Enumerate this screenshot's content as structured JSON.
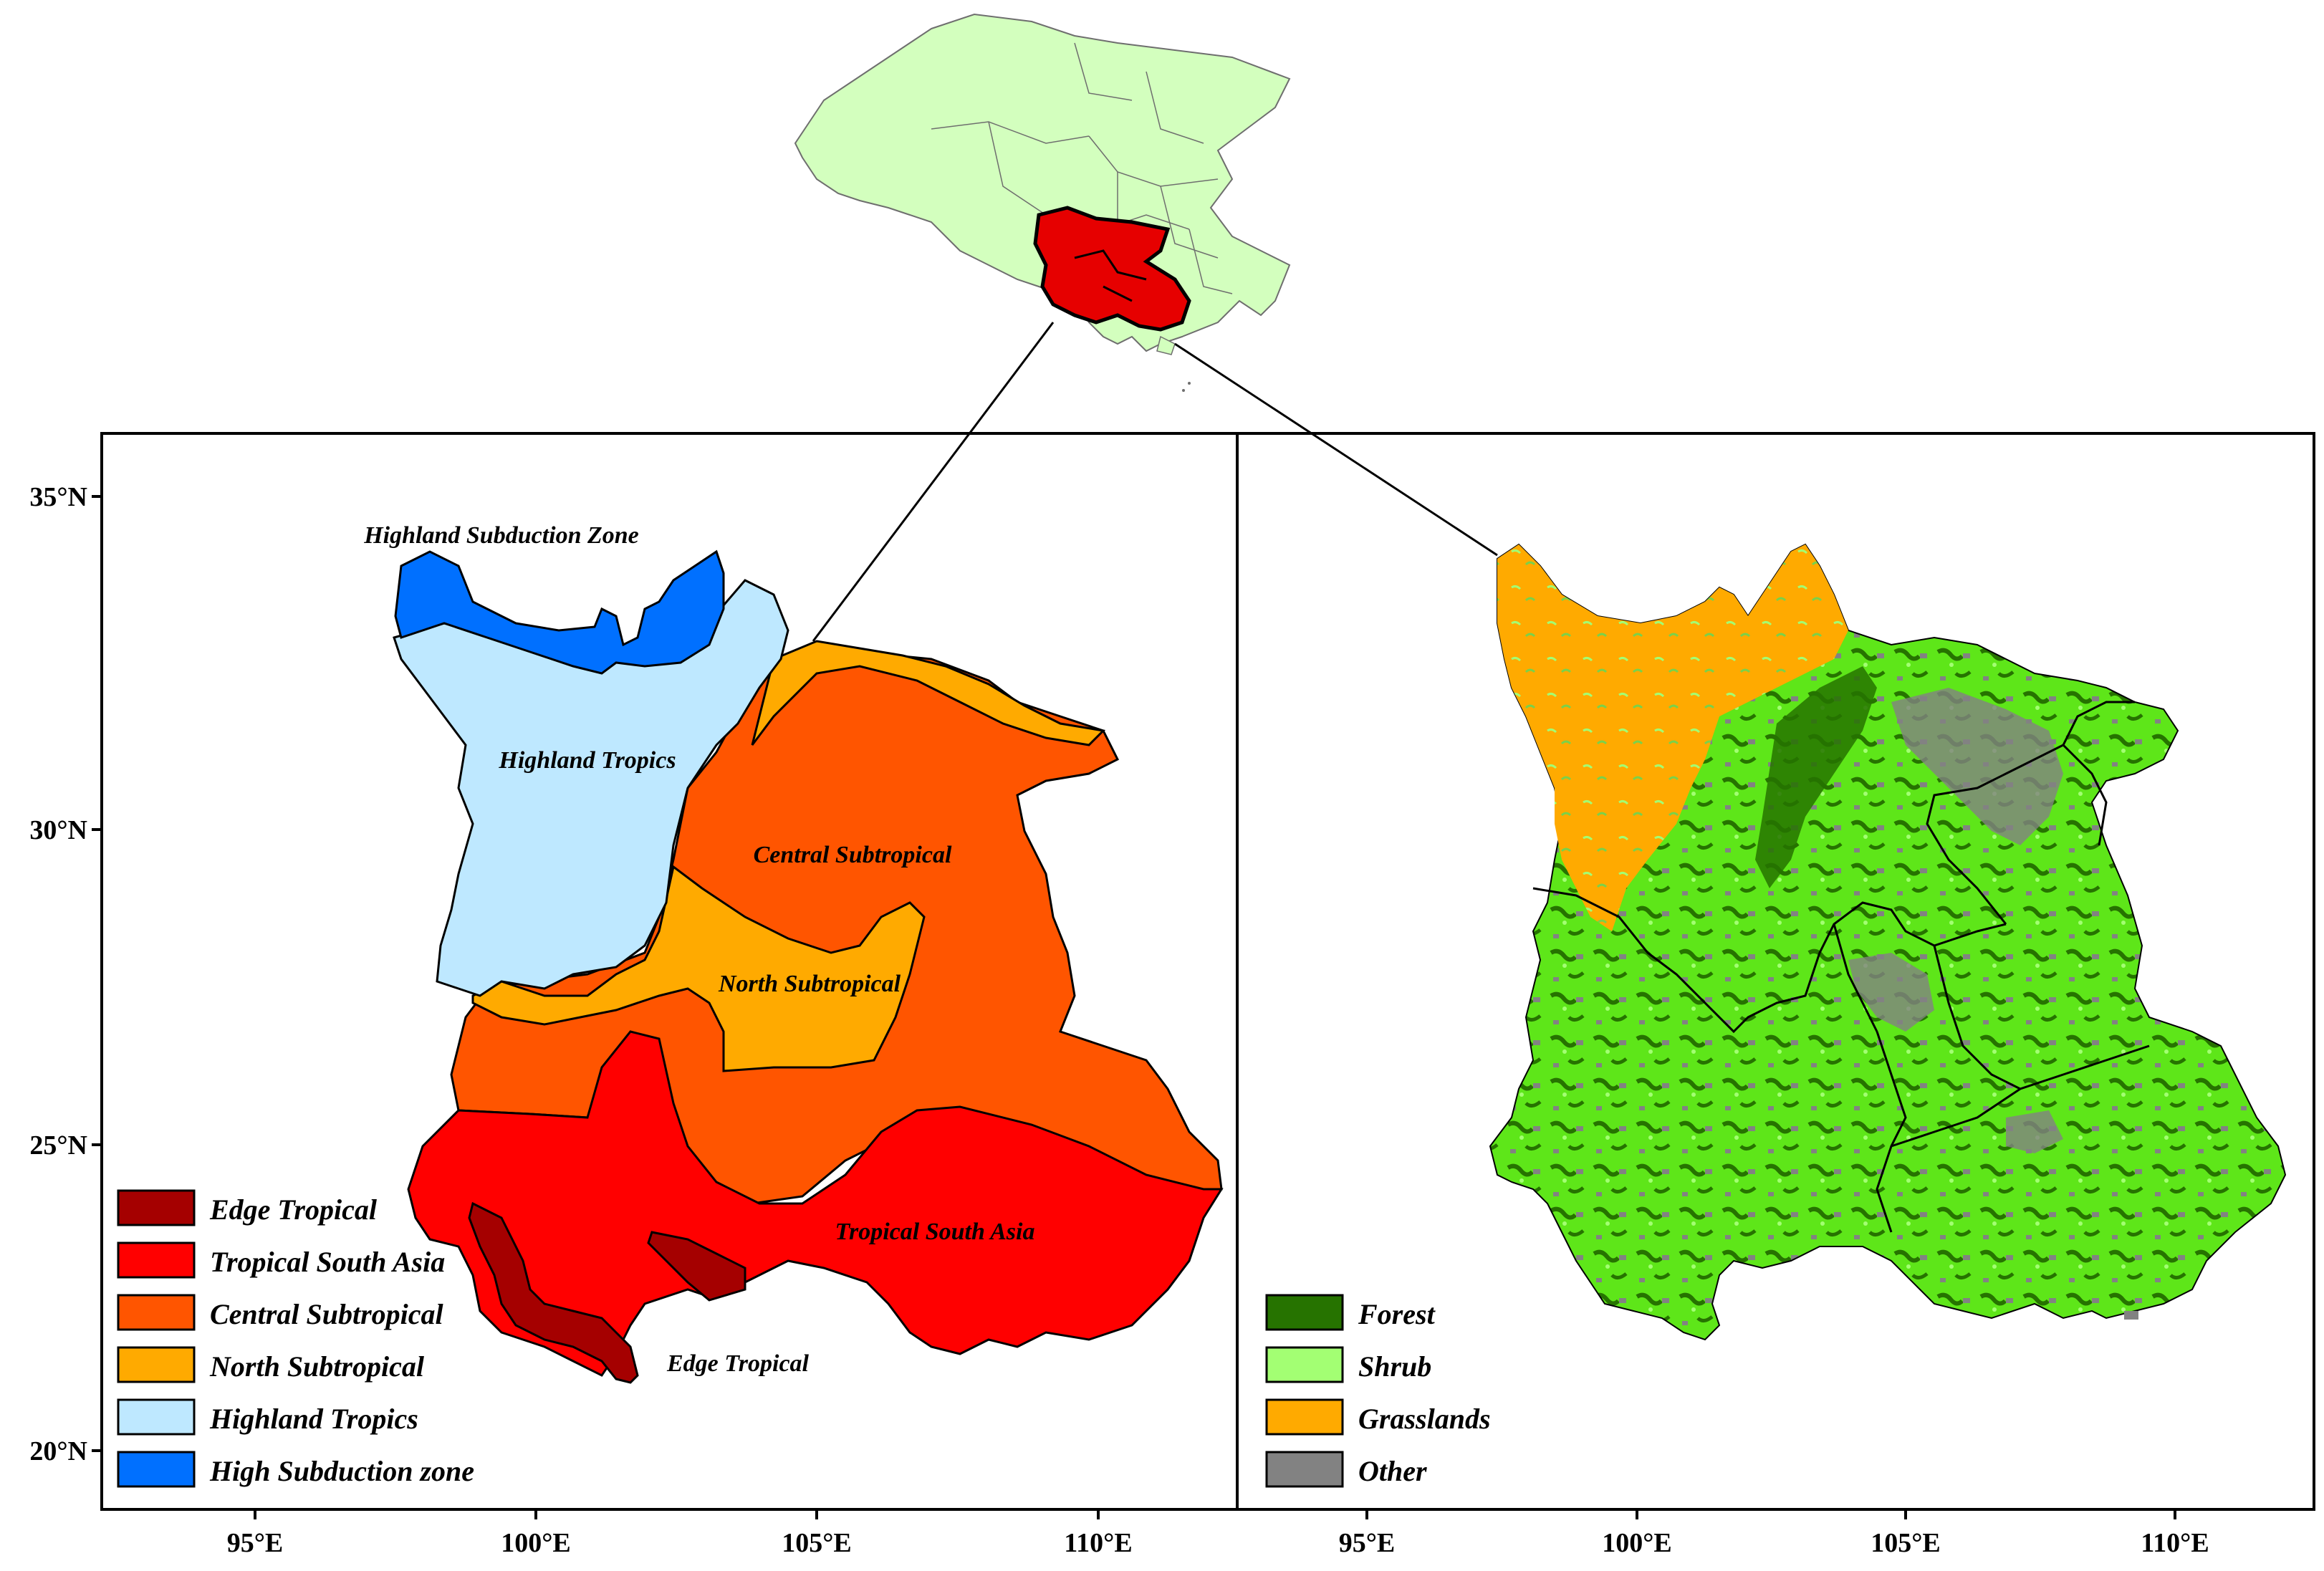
{
  "left_panel": {
    "lat_ticks": [
      "35°N",
      "30°N",
      "25°N",
      "20°N"
    ],
    "lon_ticks": [
      "95°E",
      "100°E",
      "105°E",
      "110°E"
    ],
    "zone_labels": {
      "highland_subduction_zone": "Highland Subduction Zone",
      "highland_tropics": "Highland Tropics",
      "central_subtropical": "Central Subtropical",
      "north_subtropical": "North Subtropical",
      "tropical_south_asia": "Tropical South Asia",
      "edge_tropical": "Edge Tropical"
    },
    "legend": [
      {
        "label": "Edge Tropical",
        "color": "#a50000"
      },
      {
        "label": "Tropical South Asia",
        "color": "#ff0000"
      },
      {
        "label": "Central Subtropical",
        "color": "#ff5500"
      },
      {
        "label": "North Subtropical",
        "color": "#ffaa00"
      },
      {
        "label": "Highland Tropics",
        "color": "#bee8ff"
      },
      {
        "label": "High Subduction zone",
        "color": "#0070ff"
      }
    ]
  },
  "right_panel": {
    "lon_ticks": [
      "95°E",
      "100°E",
      "105°E",
      "110°E"
    ],
    "legend": [
      {
        "label": "Forest",
        "color": "#267300"
      },
      {
        "label": "Shrub",
        "color": "#a3ff73"
      },
      {
        "label": "Grasslands",
        "color": "#ffaa00"
      },
      {
        "label": "Other",
        "color": "#828282"
      }
    ]
  },
  "inset": {
    "country_fill": "#d3ffbe",
    "study_area_fill": "#e60000"
  }
}
